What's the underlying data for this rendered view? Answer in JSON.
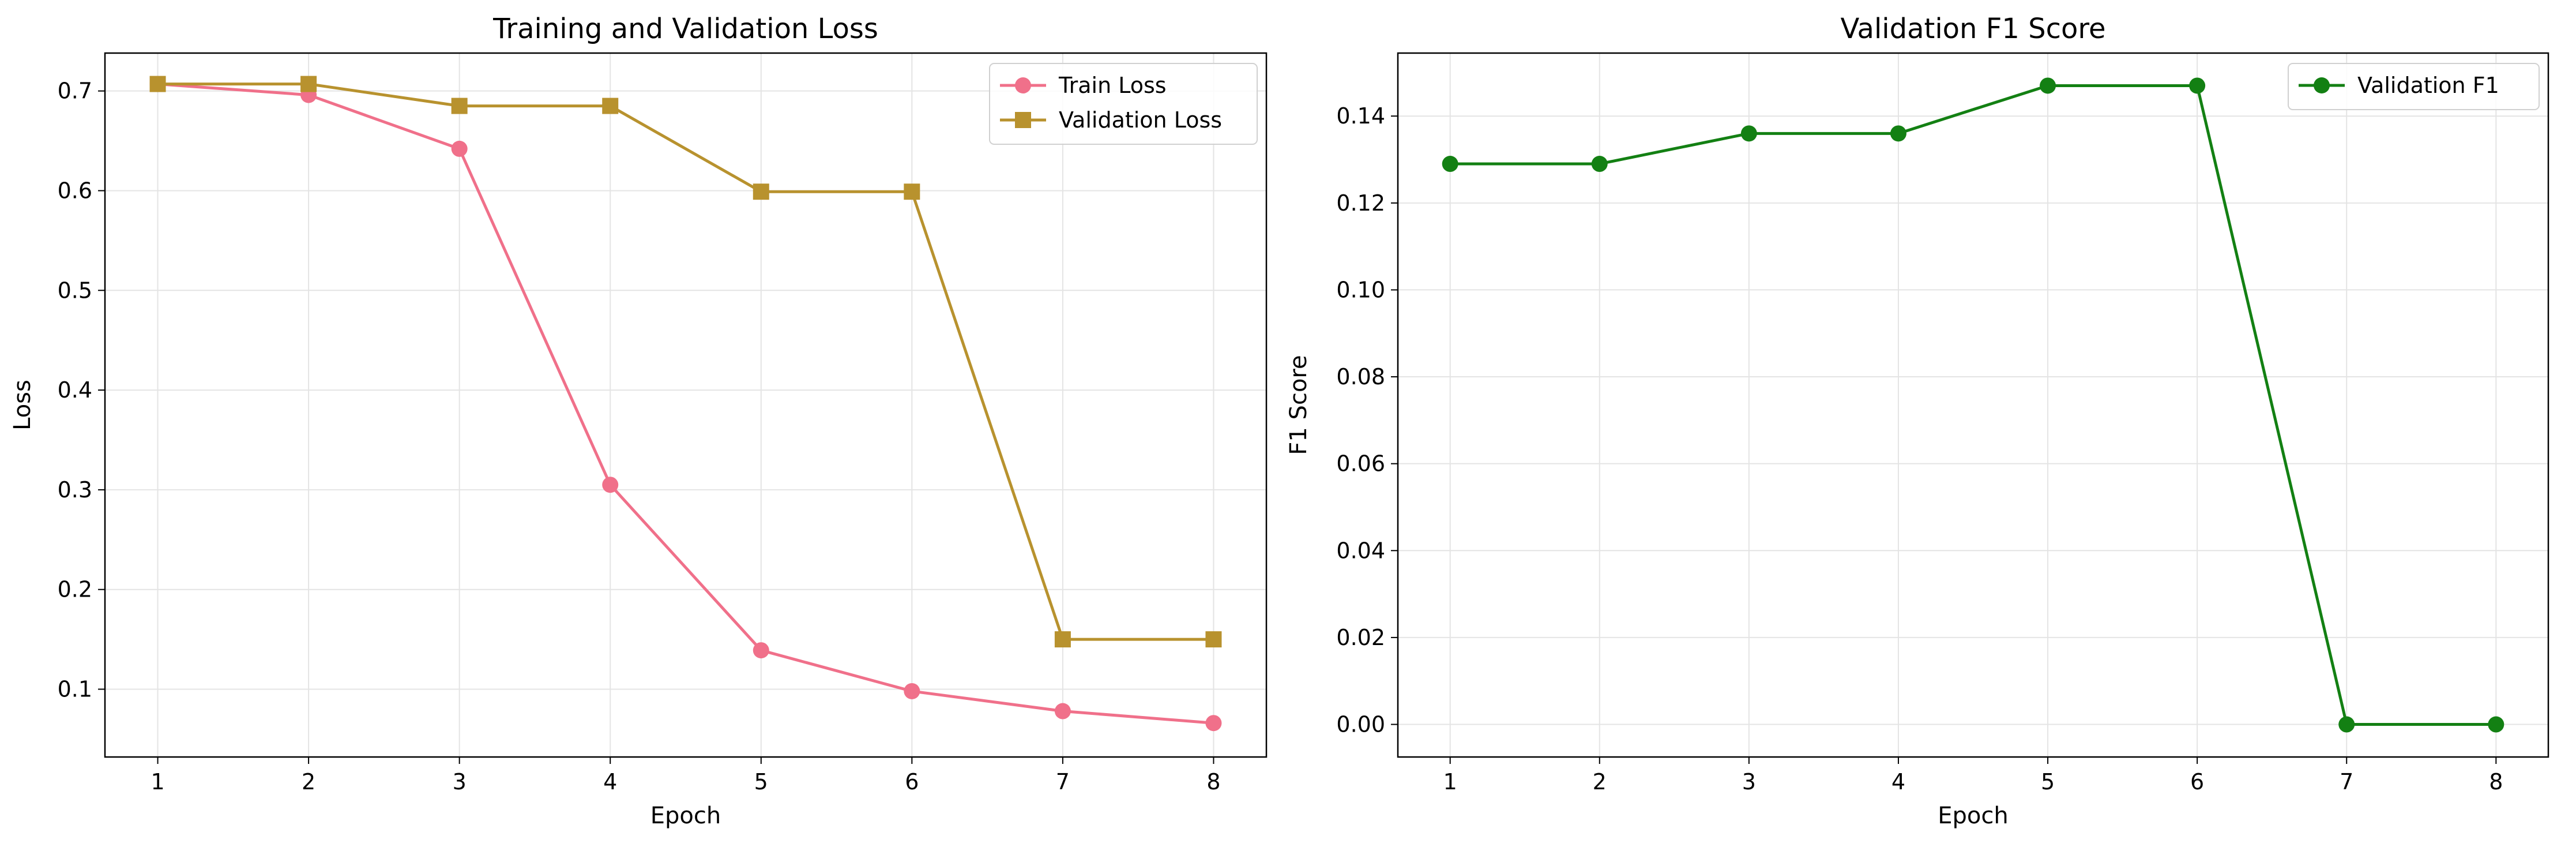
{
  "chart_data": [
    {
      "type": "line",
      "title": "Training and Validation Loss",
      "xlabel": "Epoch",
      "ylabel": "Loss",
      "x": [
        1,
        2,
        3,
        4,
        5,
        6,
        7,
        8
      ],
      "xlim": [
        0.65,
        8.35
      ],
      "ylim": [
        0.032,
        0.738
      ],
      "xticks": [
        1,
        2,
        3,
        4,
        5,
        6,
        7,
        8
      ],
      "yticks": [
        0.1,
        0.2,
        0.3,
        0.4,
        0.5,
        0.6,
        0.7
      ],
      "grid": true,
      "legend_position": "top-right",
      "series": [
        {
          "name": "Train Loss",
          "color": "#f0708a",
          "marker": "circle",
          "values": [
            0.707,
            0.696,
            0.642,
            0.305,
            0.139,
            0.098,
            0.078,
            0.066
          ]
        },
        {
          "name": "Validation Loss",
          "color": "#b8922e",
          "marker": "square",
          "values": [
            0.707,
            0.707,
            0.685,
            0.685,
            0.599,
            0.599,
            0.15,
            0.15
          ]
        }
      ]
    },
    {
      "type": "line",
      "title": "Validation F1 Score",
      "xlabel": "Epoch",
      "ylabel": "F1 Score",
      "x": [
        1,
        2,
        3,
        4,
        5,
        6,
        7,
        8
      ],
      "xlim": [
        0.65,
        8.35
      ],
      "ylim": [
        -0.0075,
        0.1545
      ],
      "xticks": [
        1,
        2,
        3,
        4,
        5,
        6,
        7,
        8
      ],
      "yticks": [
        0.0,
        0.02,
        0.04,
        0.06,
        0.08,
        0.1,
        0.12,
        0.14
      ],
      "ytick_decimals": 2,
      "grid": true,
      "legend_position": "top-right",
      "series": [
        {
          "name": "Validation F1",
          "color": "#138013",
          "marker": "circle",
          "values": [
            0.129,
            0.129,
            0.136,
            0.136,
            0.147,
            0.147,
            0.0,
            0.0
          ]
        }
      ]
    }
  ]
}
